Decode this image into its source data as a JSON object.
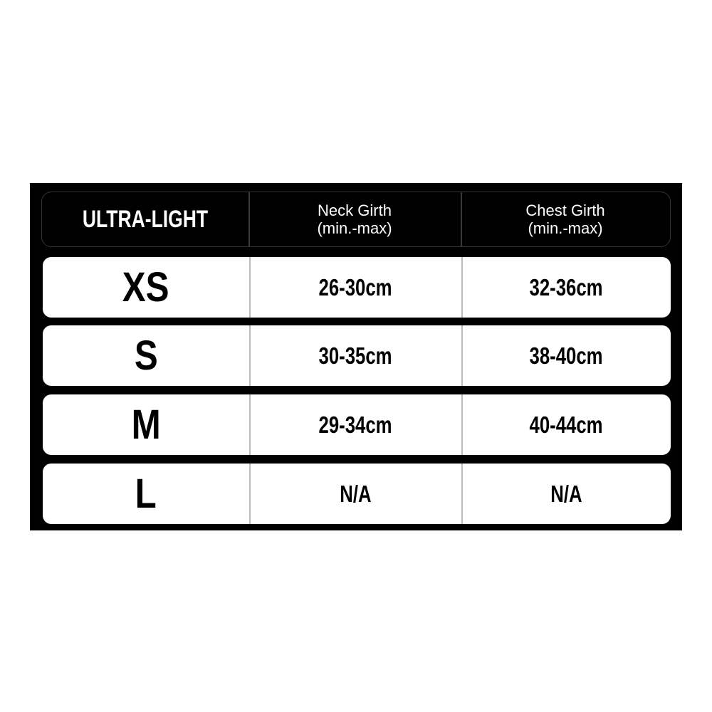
{
  "table": {
    "title": "ULTRA-LIGHT",
    "columns": [
      {
        "label": "Neck Girth",
        "sub": "(min.-max)"
      },
      {
        "label": "Chest Girth",
        "sub": "(min.-max)"
      }
    ],
    "rows": [
      {
        "size": "XS",
        "neck": "26-30cm",
        "chest": "32-36cm"
      },
      {
        "size": "S",
        "neck": "30-35cm",
        "chest": "38-40cm"
      },
      {
        "size": "M",
        "neck": "29-34cm",
        "chest": "40-44cm"
      },
      {
        "size": "L",
        "neck": "N/A",
        "chest": "N/A"
      }
    ]
  }
}
